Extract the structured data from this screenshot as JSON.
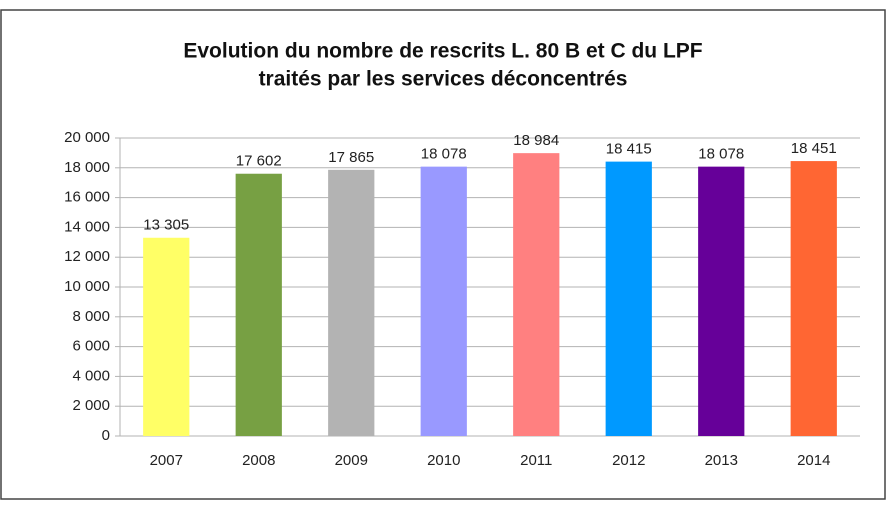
{
  "chart_data": {
    "type": "bar",
    "title": [
      "Evolution du nombre de rescrits L. 80 B et C du LPF",
      "traités par les services déconcentrés"
    ],
    "categories": [
      "2007",
      "2008",
      "2009",
      "2010",
      "2011",
      "2012",
      "2013",
      "2014"
    ],
    "values": [
      13305,
      17602,
      17865,
      18078,
      18984,
      18415,
      18078,
      18451
    ],
    "value_labels": [
      "13 305",
      "17 602",
      "17 865",
      "18 078",
      "18 984",
      "18 415",
      "18 078",
      "18 451"
    ],
    "colors": [
      "#ffff66",
      "#77a043",
      "#b3b3b3",
      "#9999ff",
      "#ff8080",
      "#0099ff",
      "#660099",
      "#ff6633"
    ],
    "ylim": [
      0,
      20000
    ],
    "yticks": [
      {
        "value": 0,
        "label": "0"
      },
      {
        "value": 2000,
        "label": "2 000"
      },
      {
        "value": 4000,
        "label": "4 000"
      },
      {
        "value": 6000,
        "label": "6 000"
      },
      {
        "value": 8000,
        "label": "8 000"
      },
      {
        "value": 10000,
        "label": "10 000"
      },
      {
        "value": 12000,
        "label": "12 000"
      },
      {
        "value": 14000,
        "label": "14 000"
      },
      {
        "value": 16000,
        "label": "16 000"
      },
      {
        "value": 18000,
        "label": "18 000"
      },
      {
        "value": 20000,
        "label": "20 000"
      }
    ],
    "grid": true
  }
}
